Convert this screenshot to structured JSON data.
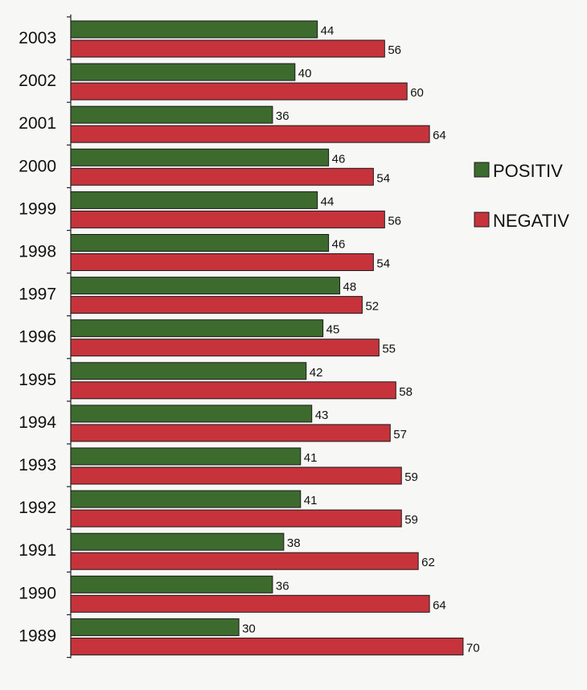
{
  "chart_data": {
    "type": "bar",
    "orientation": "horizontal",
    "title": "",
    "xlabel": "",
    "ylabel": "",
    "xlim": [
      0,
      70
    ],
    "grid": false,
    "legend_position": "right",
    "categories": [
      "2003",
      "2002",
      "2001",
      "2000",
      "1999",
      "1998",
      "1997",
      "1996",
      "1995",
      "1994",
      "1993",
      "1992",
      "1991",
      "1990",
      "1989"
    ],
    "series": [
      {
        "name": "POSITIV",
        "color": "#3d6b2e",
        "values": [
          44,
          40,
          36,
          46,
          44,
          46,
          48,
          45,
          42,
          43,
          41,
          41,
          38,
          36,
          30
        ]
      },
      {
        "name": "NEGATIV",
        "color": "#c7333b",
        "values": [
          56,
          60,
          64,
          54,
          56,
          54,
          52,
          55,
          58,
          57,
          59,
          59,
          62,
          64,
          70
        ]
      }
    ]
  }
}
